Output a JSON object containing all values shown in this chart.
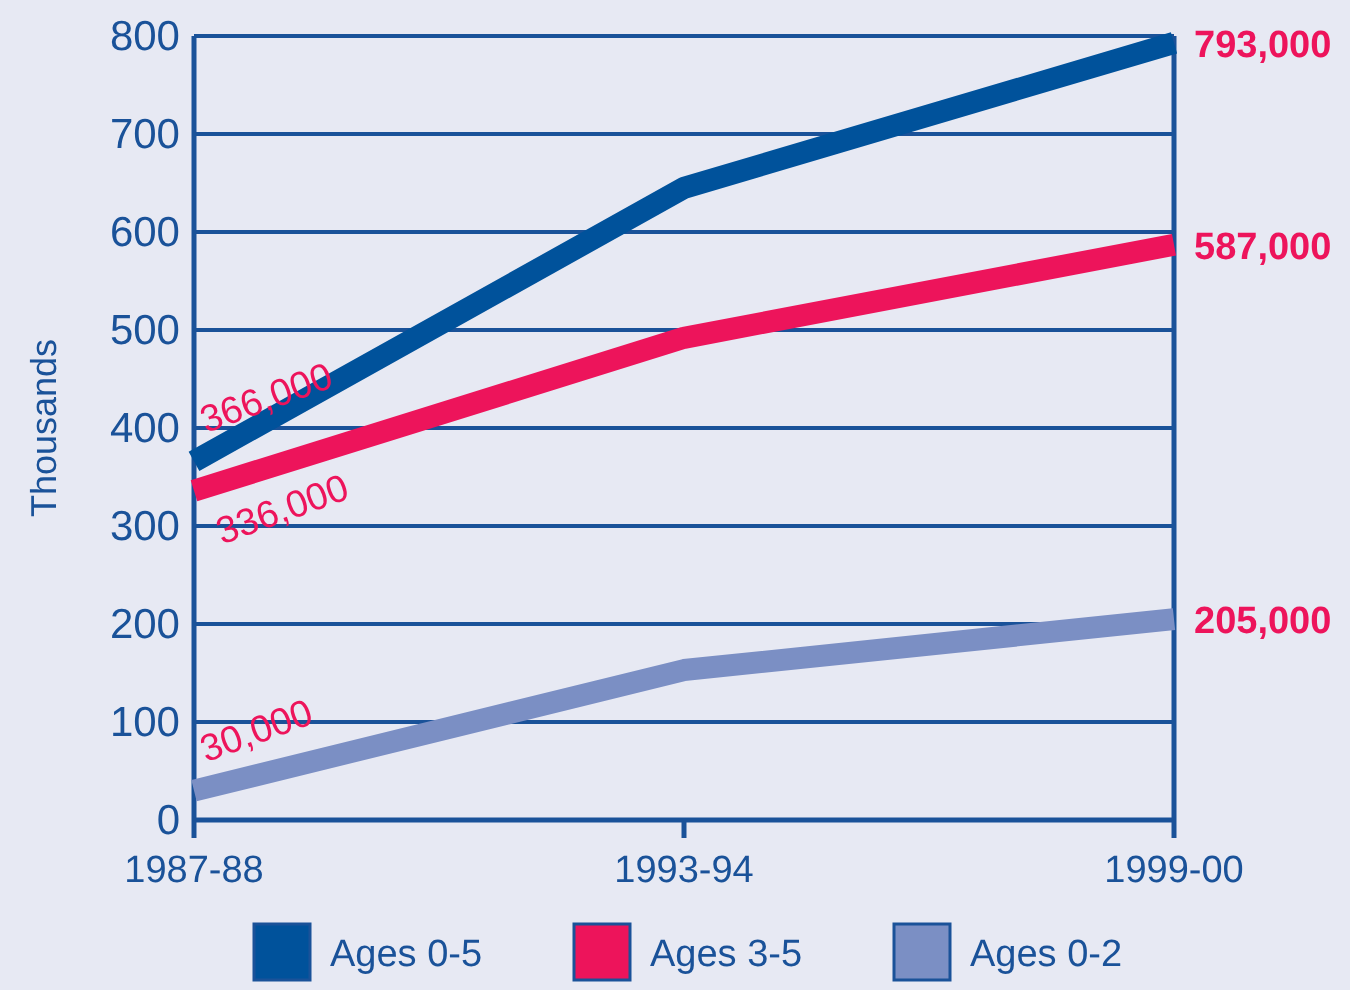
{
  "chart_data": {
    "type": "line",
    "ylabel": "Thousands",
    "categories": [
      "1987-88",
      "1993-94",
      "1999-00"
    ],
    "series": [
      {
        "name": "Ages 0-5",
        "color": "#00529b",
        "values": [
          366,
          645,
          793
        ]
      },
      {
        "name": "Ages 3-5",
        "color": "#ed145b",
        "values": [
          336,
          492,
          587
        ]
      },
      {
        "name": "Ages 0-2",
        "color": "#7b8fc4",
        "values": [
          30,
          153,
          205
        ]
      }
    ],
    "annotations": [
      {
        "text": "366,000",
        "x": "1987-88",
        "y": 366
      },
      {
        "text": "336,000",
        "x": "1987-88",
        "y": 336
      },
      {
        "text": "30,000",
        "x": "1987-88",
        "y": 30
      },
      {
        "text": "793,000",
        "x": "1999-00",
        "y": 793
      },
      {
        "text": "587,000",
        "x": "1999-00",
        "y": 587
      },
      {
        "text": "205,000",
        "x": "1999-00",
        "y": 205
      }
    ],
    "ylim": [
      0,
      800
    ],
    "yticks": [
      0,
      100,
      200,
      300,
      400,
      500,
      600,
      700,
      800
    ],
    "grid": "y",
    "legend": "bottom",
    "line_style": "solid"
  }
}
